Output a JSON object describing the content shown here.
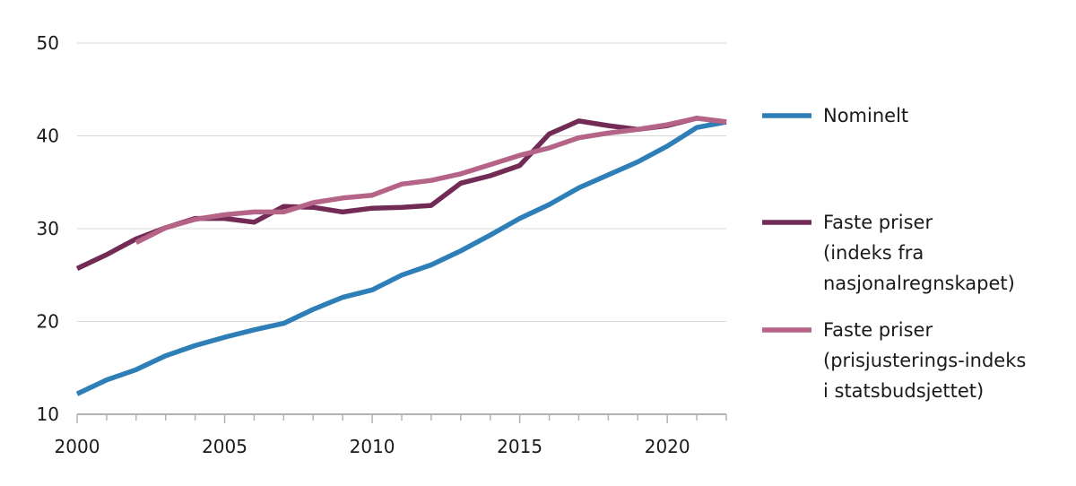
{
  "chart_data": {
    "type": "line",
    "title": "",
    "xlabel": "",
    "ylabel": "",
    "xlim": [
      2000,
      2022
    ],
    "ylim": [
      10,
      50
    ],
    "y_ticks": [
      10,
      20,
      30,
      40,
      50
    ],
    "x_ticks": [
      2000,
      2005,
      2010,
      2015,
      2020
    ],
    "grid": true,
    "legend_position": "right",
    "series": [
      {
        "key": "nominelt",
        "name_lines": [
          "Nominelt"
        ],
        "color": "#2e7fb8",
        "x": [
          2000,
          2001,
          2002,
          2003,
          2004,
          2005,
          2006,
          2007,
          2008,
          2009,
          2010,
          2011,
          2012,
          2013,
          2014,
          2015,
          2016,
          2017,
          2018,
          2019,
          2020,
          2021,
          2022
        ],
        "values": [
          12.2,
          13.7,
          14.8,
          16.3,
          17.4,
          18.3,
          19.1,
          19.8,
          21.3,
          22.6,
          23.4,
          25.0,
          26.1,
          27.6,
          29.3,
          31.1,
          32.6,
          34.4,
          35.8,
          37.2,
          38.9,
          40.9,
          41.5
        ]
      },
      {
        "key": "faste-priser-nasjonalregnskapet",
        "name_lines": [
          "Faste priser",
          "(indeks fra",
          "nasjonalregnskapet)"
        ],
        "color": "#722b55",
        "x": [
          2000,
          2001,
          2002,
          2003,
          2004,
          2005,
          2006,
          2007,
          2008,
          2009,
          2010,
          2011,
          2012,
          2013,
          2014,
          2015,
          2016,
          2017,
          2018,
          2019,
          2020,
          2021,
          2022
        ],
        "values": [
          25.7,
          27.2,
          28.9,
          30.1,
          31.1,
          31.1,
          30.7,
          32.4,
          32.3,
          31.8,
          32.2,
          32.3,
          32.5,
          34.9,
          35.7,
          36.8,
          40.2,
          41.6,
          41.1,
          40.7,
          41.1,
          41.9,
          41.5
        ]
      },
      {
        "key": "faste-priser-statsbudsjettet",
        "name_lines": [
          "Faste priser",
          "(prisjusterings-indeks",
          "i statsbudsjettet)"
        ],
        "color": "#b56488",
        "x": [
          2002,
          2003,
          2004,
          2005,
          2006,
          2007,
          2008,
          2009,
          2010,
          2011,
          2012,
          2013,
          2014,
          2015,
          2016,
          2017,
          2018,
          2019,
          2020,
          2021,
          2022
        ],
        "values": [
          28.5,
          30.1,
          31.0,
          31.5,
          31.8,
          31.8,
          32.8,
          33.3,
          33.6,
          34.8,
          35.2,
          35.9,
          36.9,
          37.9,
          38.7,
          39.8,
          40.3,
          40.7,
          41.2,
          41.9,
          41.5
        ]
      }
    ]
  }
}
